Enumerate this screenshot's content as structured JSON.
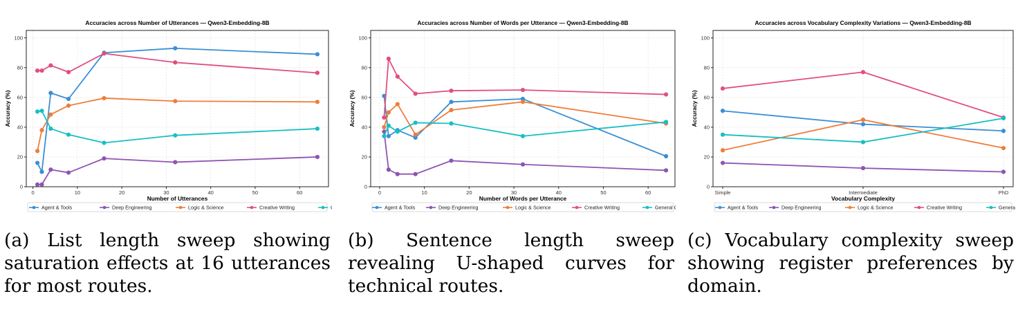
{
  "chart_data": [
    {
      "type": "line",
      "title": "Accuracies across Number of Utterances — Qwen3-Embedding-8B",
      "xlabel": "Number of Utterances",
      "ylabel": "Accuracy (%)",
      "xlim": [
        -1.5,
        66.5
      ],
      "ylim": [
        0,
        105
      ],
      "xticks": [
        0,
        10,
        20,
        30,
        40,
        50,
        60
      ],
      "yticks": [
        0,
        20,
        40,
        60,
        80,
        100
      ],
      "grid": true,
      "legend_position": "bottom",
      "x": [
        1,
        2,
        4,
        8,
        16,
        32,
        64
      ],
      "series": [
        {
          "name": "Agent & Tools",
          "color": "#3a8fd6",
          "values": [
            16,
            10,
            63,
            59,
            90,
            93,
            89
          ]
        },
        {
          "name": "Deep Engineering",
          "color": "#8e54b2",
          "values": [
            1.5,
            1.5,
            11.5,
            9.5,
            19,
            16.5,
            20
          ]
        },
        {
          "name": "Logic & Science",
          "color": "#ee7d3a",
          "values": [
            24,
            38,
            48.5,
            54.5,
            59.5,
            57.5,
            57
          ]
        },
        {
          "name": "Creative Writing",
          "color": "#e24e7e",
          "values": [
            78,
            78,
            81.5,
            77,
            89.5,
            83.5,
            76.5
          ]
        },
        {
          "name": "General Chat",
          "color": "#16bfc4",
          "values": [
            50.5,
            51,
            39,
            35,
            29.5,
            34.5,
            39
          ]
        }
      ]
    },
    {
      "type": "line",
      "title": "Accuracies across Number of Words per Utterance — Qwen3-Embedding-8B",
      "xlabel": "Number of Words per Utterance",
      "ylabel": "Accuracy (%)",
      "xlim": [
        -2,
        66
      ],
      "ylim": [
        0,
        105
      ],
      "xticks": [
        0,
        10,
        20,
        30,
        40,
        50,
        60
      ],
      "yticks": [
        0,
        20,
        40,
        60,
        80,
        100
      ],
      "grid": true,
      "legend_position": "bottom",
      "x": [
        1,
        2,
        4,
        8,
        16,
        32,
        64
      ],
      "series": [
        {
          "name": "Agent & Tools",
          "color": "#3a8fd6",
          "values": [
            61,
            34,
            38,
            33,
            57,
            59,
            20.5
          ]
        },
        {
          "name": "Deep Engineering",
          "color": "#8e54b2",
          "values": [
            37,
            11.5,
            8.5,
            8.5,
            17.5,
            15,
            11
          ]
        },
        {
          "name": "Logic & Science",
          "color": "#ee7d3a",
          "values": [
            40,
            50,
            55.5,
            35,
            51.5,
            57,
            42.5
          ]
        },
        {
          "name": "Creative Writing",
          "color": "#e24e7e",
          "values": [
            46.5,
            86,
            74,
            62.5,
            64.5,
            65,
            62
          ]
        },
        {
          "name": "General Chat",
          "color": "#16bfc4",
          "values": [
            34,
            41,
            37,
            43,
            42.5,
            34,
            43.5
          ]
        }
      ]
    },
    {
      "type": "line",
      "title": "Accuracies across Vocabulary Complexity Variations — Qwen3-Embedding-8B",
      "xlabel": "Vocabulary Complexity",
      "ylabel": "Accuracy (%)",
      "ylim": [
        0,
        105
      ],
      "yticks": [
        0,
        20,
        40,
        60,
        80,
        100
      ],
      "grid": true,
      "legend_position": "bottom",
      "categories": [
        "Simple",
        "Intermediate",
        "PhD"
      ],
      "series": [
        {
          "name": "Agent & Tools",
          "color": "#3a8fd6",
          "values": [
            51,
            42,
            37.5
          ]
        },
        {
          "name": "Deep Engineering",
          "color": "#8e54b2",
          "values": [
            16,
            12.5,
            10
          ]
        },
        {
          "name": "Logic & Science",
          "color": "#ee7d3a",
          "values": [
            24.5,
            45,
            26
          ]
        },
        {
          "name": "Creative Writing",
          "color": "#e24e7e",
          "values": [
            66,
            77,
            46.5
          ]
        },
        {
          "name": "General Chat",
          "color": "#16bfc4",
          "values": [
            35,
            30,
            46
          ]
        }
      ]
    }
  ],
  "captions": [
    "(a) List length sweep showing saturation effects at 16 utterances for most routes.",
    "(b) Sentence length sweep revealing U-shaped curves for technical routes.",
    "(c) Vocabulary complexity sweep showing register preferences by domain."
  ]
}
